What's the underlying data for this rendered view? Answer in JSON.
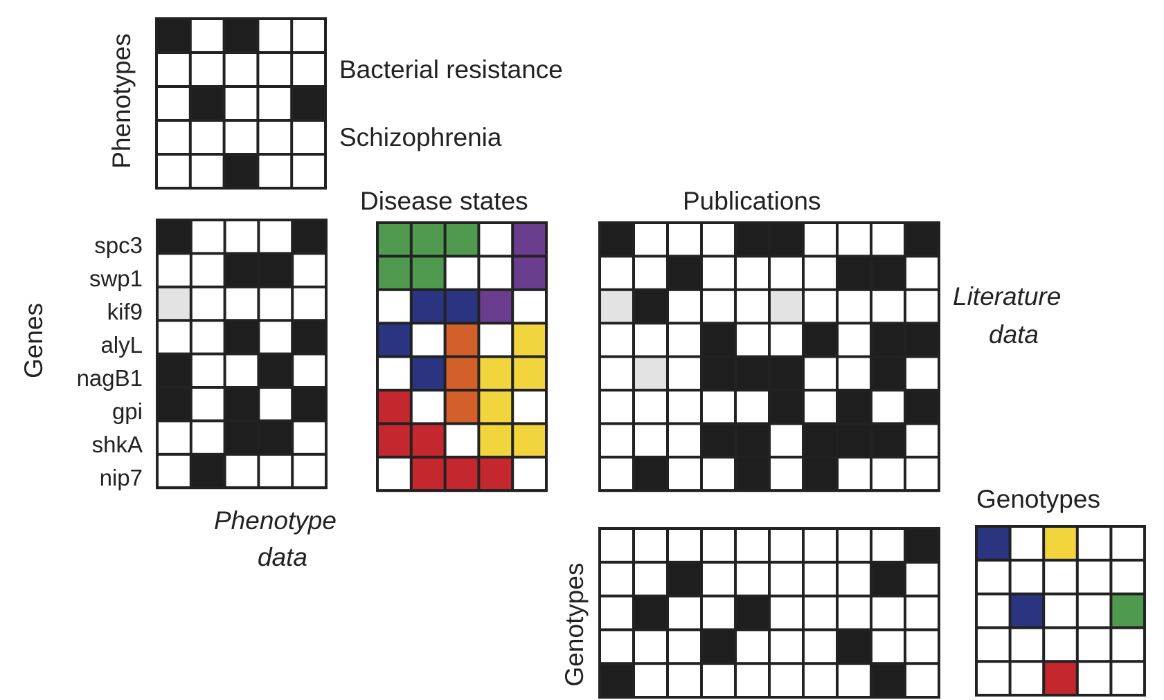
{
  "labels": {
    "phenotypes_axis": "Phenotypes",
    "genes_axis": "Genes",
    "genotypes_axis": "Genotypes",
    "bacterial_resistance": "Bacterial resistance",
    "schizophrenia": "Schizophrenia",
    "disease_states": "Disease states",
    "publications": "Publications",
    "genotypes_title": "Genotypes",
    "literature_data_1": "Literature",
    "literature_data_2": "data",
    "phenotype_data_1": "Phenotype",
    "phenotype_data_2": "data"
  },
  "genes": [
    "spc3",
    "swp1",
    "kif9",
    "alyL",
    "nagB1",
    "gpi",
    "shkA",
    "nip7"
  ],
  "palette": {
    "K": "#1e1e1e",
    "W": "#ffffff",
    "L": "#e3e3e3",
    "G": "#4f9a4f",
    "P": "#6a3d8f",
    "B": "#2a3480",
    "O": "#d3602a",
    "Y": "#f2d43c",
    "R": "#c4272d",
    "grid": "#222222"
  },
  "matrices": {
    "phenotypes": [
      "KWKWW",
      "WWWWW",
      "WKWWK",
      "WWWWW",
      "WWKWW"
    ],
    "phenotype_data": [
      "KWWWK",
      "WWKKW",
      "LWWWW",
      "WWKWK",
      "KWWKW",
      "KWKWK",
      "WWKKW",
      "WKWWW"
    ],
    "disease_states": [
      "GGGWP",
      "GGWWP",
      "WBBPW",
      "BWOWY",
      "WBOYY",
      "RWOYW",
      "RRWYY",
      "WRRRW"
    ],
    "literature_data": [
      "KWWWKKWWWK",
      "WWKWWWWKKW",
      "LKWWWLWWWW",
      "WWWKWWKWKK",
      "WLWKKKWWKW",
      "WWWWWKWKWK",
      "WWWKKWKKKW",
      "WKWWKWKWWW"
    ],
    "genotype_matrix": [
      "WWWWWWWWWK",
      "WWKWWWWWKW",
      "WKWWKWWWWW",
      "WWWKWWWKWW",
      "KWWWWWWWKW"
    ],
    "genotypes": [
      "BWYWW",
      "WWWWW",
      "WBWWG",
      "WWWWW",
      "WWRWW"
    ]
  }
}
